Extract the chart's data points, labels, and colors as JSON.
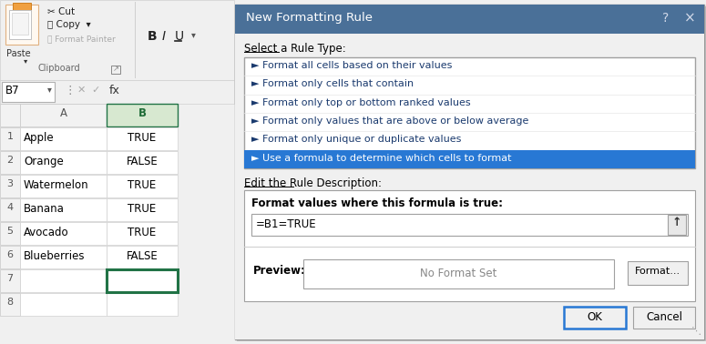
{
  "fig_width": 7.75,
  "fig_height": 3.78,
  "bg_color": "#f0f0f0",
  "spreadsheet": {
    "rows": [
      {
        "num": 1,
        "col_a": "Apple",
        "col_b": "TRUE"
      },
      {
        "num": 2,
        "col_a": "Orange",
        "col_b": "FALSE"
      },
      {
        "num": 3,
        "col_a": "Watermelon",
        "col_b": "TRUE"
      },
      {
        "num": 4,
        "col_a": "Banana",
        "col_b": "TRUE"
      },
      {
        "num": 5,
        "col_a": "Avocado",
        "col_b": "TRUE"
      },
      {
        "num": 6,
        "col_a": "Blueberries",
        "col_b": "FALSE"
      },
      {
        "num": 7,
        "col_a": "",
        "col_b": ""
      },
      {
        "num": 8,
        "col_a": "",
        "col_b": ""
      }
    ]
  },
  "dialog": {
    "title": "New Formatting Rule",
    "title_bg": "#4a7098",
    "title_fg": "#ffffff",
    "rule_type_label": "Select a Rule Type:",
    "rule_types": [
      "► Format all cells based on their values",
      "► Format only cells that contain",
      "► Format only top or bottom ranked values",
      "► Format only values that are above or below average",
      "► Format only unique or duplicate values",
      "► Use a formula to determine which cells to format"
    ],
    "selected_rule_index": 5,
    "selected_rule_bg": "#2878d4",
    "selected_rule_fg": "#ffffff",
    "rule_list_bg": "#ffffff",
    "rule_text_color": "#1a3a6e",
    "desc_label": "Edit the Rule Description:",
    "formula_label": "Format values where this formula is true:",
    "formula_value": "=B1=TRUE",
    "preview_label": "Preview:",
    "preview_text": "No Format Set",
    "btn_format": "Format...",
    "btn_ok": "OK",
    "btn_cancel": "Cancel",
    "btn_ok_border": "#2878d4"
  }
}
